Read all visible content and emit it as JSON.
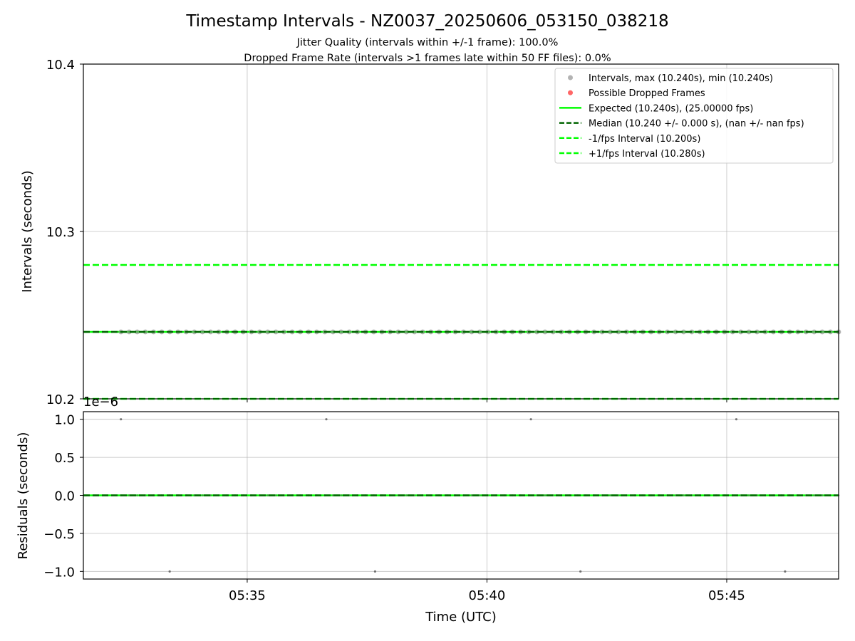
{
  "chart_data": {
    "type": "scatter",
    "title": "Timestamp Intervals - NZ0037_20250606_053150_038218",
    "subtitle_1": "Jitter Quality (intervals within +/-1 frame): 100.0%",
    "subtitle_2": "Dropped Frame Rate (intervals >1 frames late within 50 FF files): 0.0%",
    "xlabel": "Time (UTC)",
    "x_ticks": [
      "05:35",
      "05:40",
      "05:45"
    ],
    "x_range": [
      "05:31:35",
      "05:47:20"
    ],
    "interval_panel": {
      "ylabel": "Intervals (seconds)",
      "ylim": [
        10.2,
        10.4
      ],
      "y_ticks": [
        "10.4",
        "10.3",
        "10.2"
      ],
      "grid": true,
      "legend_position": "top-right",
      "legend": [
        "Intervals, max (10.240s), min (10.240s)",
        "Possible Dropped Frames",
        "Expected (10.240s), (25.00000 fps)",
        "Median (10.240 +/- 0.000 s), (nan +/- nan fps)",
        "-1/fps Interval (10.200s)",
        "+1/fps Interval (10.280s)"
      ],
      "series": [
        {
          "name": "Intervals, max (10.240s), min (10.240s)",
          "color": "#808080",
          "value": 10.24,
          "count": 89,
          "first_time": "05:32:22",
          "last_time": "05:47:20"
        },
        {
          "name": "Possible Dropped Frames",
          "color": "#ff5555",
          "count": 0
        },
        {
          "name": "Expected (10.240s), (25.00000 fps)",
          "color": "#00ff00",
          "style": "solid",
          "value": 10.24
        },
        {
          "name": "Median (10.240 +/- 0.000 s), (nan +/- nan fps)",
          "color": "#006400",
          "style": "dashed",
          "value": 10.24
        },
        {
          "name": "-1/fps Interval (10.200s)",
          "color": "#00ff00",
          "style": "dashed",
          "value": 10.2
        },
        {
          "name": "+1/fps Interval (10.280s)",
          "color": "#00ff00",
          "style": "dashed",
          "value": 10.28
        }
      ]
    },
    "residual_panel": {
      "ylabel": "Residuals (seconds)",
      "y_offset_label": "1e−6",
      "ylim": [
        -1.1,
        1.1
      ],
      "y_ticks": [
        "1.0",
        "0.5",
        "0.0",
        "−0.5",
        "−1.0"
      ],
      "y_tick_values": [
        1.0,
        0.5,
        0.0,
        -0.5,
        -1.0
      ],
      "grid": true,
      "outliers": [
        {
          "time": "05:32:22",
          "value": 1.0
        },
        {
          "time": "05:33:23",
          "value": -1.0
        },
        {
          "time": "05:36:39",
          "value": 1.0
        },
        {
          "time": "05:37:40",
          "value": -1.0
        },
        {
          "time": "05:40:55",
          "value": 1.0
        },
        {
          "time": "05:41:57",
          "value": -1.0
        },
        {
          "time": "05:45:12",
          "value": 1.0
        },
        {
          "time": "05:46:13",
          "value": -1.0
        }
      ]
    }
  }
}
